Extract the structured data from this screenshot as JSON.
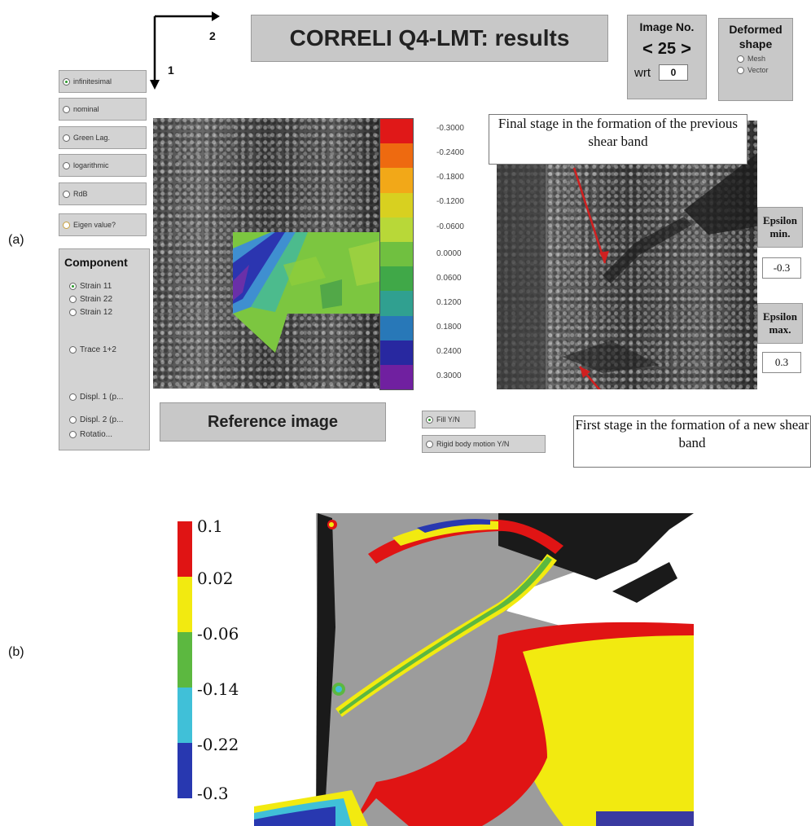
{
  "title": "CORRELI Q4-LMT: results",
  "axes": {
    "axis1": "1",
    "axis2": "2"
  },
  "image_no": {
    "label": "Image No.",
    "value": "25",
    "prev": "<",
    "next": ">",
    "wrt_label": "wrt",
    "wrt_value": "0"
  },
  "deformed_shape": {
    "label": "Deformed shape",
    "options": [
      "Mesh",
      "Vector"
    ]
  },
  "strain_options": [
    {
      "label": "infinitesimal",
      "selected": true
    },
    {
      "label": "nominal",
      "selected": false
    },
    {
      "label": "Green Lag.",
      "selected": false
    },
    {
      "label": "logarithmic",
      "selected": false
    },
    {
      "label": "RdB",
      "selected": false
    }
  ],
  "eigen_label": "Eigen value?",
  "component": {
    "title": "Component",
    "options": [
      "Strain 11",
      "Strain 22",
      "Strain 12",
      "Trace 1+2",
      "Displ. 1 (p...",
      "Displ. 2 (p...",
      "Rotatio..."
    ],
    "selected": 0
  },
  "colorscale": {
    "labels": [
      "-0.3000",
      "-0.2400",
      "-0.1800",
      "-0.1200",
      "-0.0600",
      "0.0000",
      "0.0600",
      "0.1200",
      "0.1800",
      "0.2400",
      "0.3000"
    ],
    "colors": [
      "#e01818",
      "#ee6a10",
      "#f2a818",
      "#d8d020",
      "#b8d838",
      "#70c040",
      "#40a848",
      "#30a090",
      "#2878b8",
      "#2828a0",
      "#7020a0"
    ]
  },
  "reference_label": "Reference image",
  "fill_label": "Fill Y/N",
  "rigid_label": "Rigid body motion Y/N",
  "epsilon_min": {
    "label": "Epsilon min.",
    "value": "-0.3"
  },
  "epsilon_max": {
    "label": "Epsilon max.",
    "value": "0.3"
  },
  "annotation_top": "Final stage in the formation of the previous shear band",
  "annotation_bottom": "First stage in the formation of a new shear band",
  "panel_a": "(a)",
  "panel_b": "(b)",
  "fe_legend": {
    "labels": [
      "0.1",
      "0.02",
      "-0.06",
      "-0.14",
      "-0.22",
      "-0.3"
    ],
    "colors": [
      "#e01414",
      "#f2ea10",
      "#5cb840",
      "#40c0d8",
      "#2838b0"
    ]
  }
}
